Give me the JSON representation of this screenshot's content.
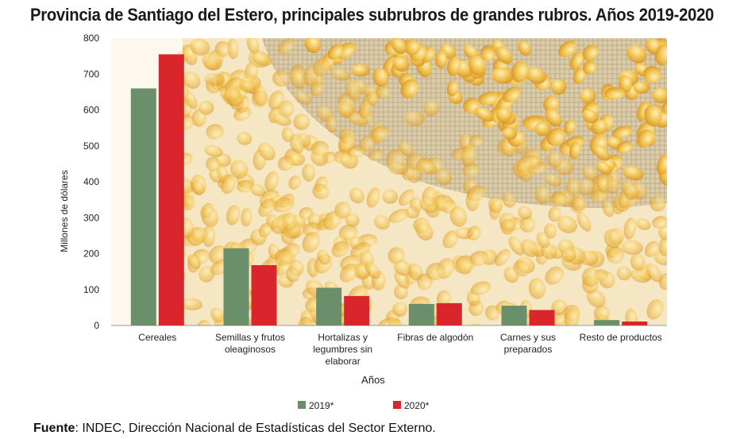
{
  "title": "Provincia de Santiago del Estero, principales subrubros de grandes rubros. Años 2019-2020",
  "source": {
    "label": "Fuente",
    "text": ": INDEC, Dirección Nacional de Estadísticas del Sector Externo."
  },
  "colors": {
    "series_2019": "#6b8f6b",
    "series_2020": "#d9262c",
    "background_theme": "corn-kernels-burlap-sack"
  },
  "chart_data": {
    "type": "bar",
    "title": "Provincia de Santiago del Estero, principales subrubros de grandes rubros. Años 2019-2020",
    "xlabel": "Años",
    "ylabel": "Millones de dólares",
    "ylim": [
      0,
      800
    ],
    "yticks": [
      0,
      100,
      200,
      300,
      400,
      500,
      600,
      700,
      800
    ],
    "grid": false,
    "legend_position": "bottom",
    "categories": [
      [
        "Cereales"
      ],
      [
        "Semillas y frutos",
        "oleaginosos"
      ],
      [
        "Hortalizas y",
        "legumbres sin",
        "elaborar"
      ],
      [
        "Fibras de algodón"
      ],
      [
        "Carnes y sus",
        "preparados"
      ],
      [
        "Resto de productos"
      ]
    ],
    "series": [
      {
        "name": "2019*",
        "values": [
          660,
          215,
          105,
          60,
          55,
          15
        ]
      },
      {
        "name": "2020*",
        "values": [
          755,
          168,
          82,
          62,
          43,
          11
        ]
      }
    ]
  }
}
